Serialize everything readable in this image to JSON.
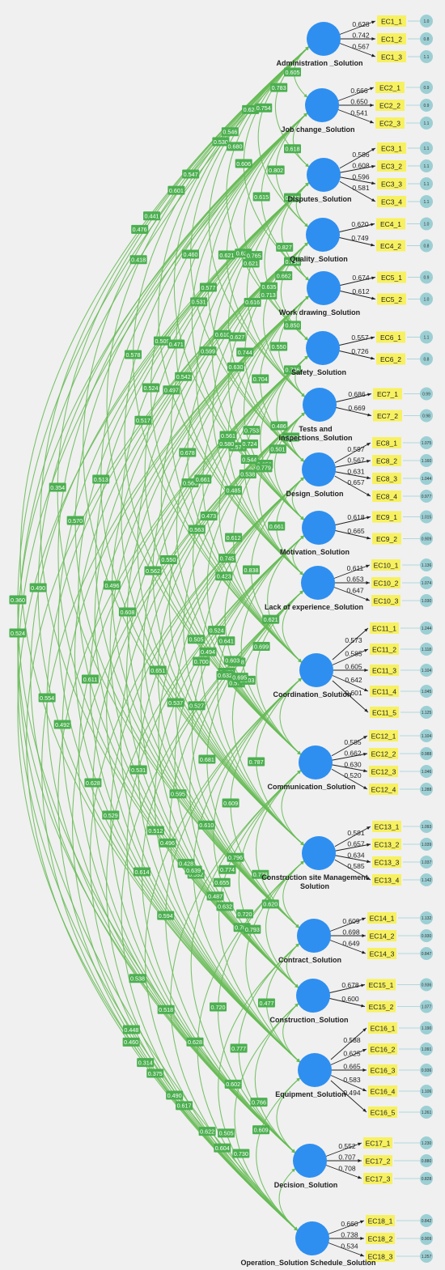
{
  "constructs": [
    {
      "name": "Administration _Solution",
      "items": [
        {
          "label": "EC1_1",
          "loading": "0.628",
          "residual": "1.0"
        },
        {
          "label": "EC1_2",
          "loading": "0.742",
          "residual": "0.8"
        },
        {
          "label": "EC1_3",
          "loading": "0.567",
          "residual": "1.1"
        }
      ]
    },
    {
      "name": "Job change_Solution",
      "items": [
        {
          "label": "EC2_1",
          "loading": "0.666",
          "residual": "0.9"
        },
        {
          "label": "EC2_2",
          "loading": "0.650",
          "residual": "0.9"
        },
        {
          "label": "EC2_3",
          "loading": "0.541",
          "residual": "1.1"
        }
      ]
    },
    {
      "name": "Disputes_Solution",
      "items": [
        {
          "label": "EC3_1",
          "loading": "0.586",
          "residual": "1.1"
        },
        {
          "label": "EC3_2",
          "loading": "0.608",
          "residual": "1.1"
        },
        {
          "label": "EC3_3",
          "loading": "0.596",
          "residual": "1.1"
        },
        {
          "label": "EC3_4",
          "loading": "0.581",
          "residual": "1.1"
        }
      ]
    },
    {
      "name": "Quality_Solution",
      "items": [
        {
          "label": "EC4_1",
          "loading": "0.620",
          "residual": "1.0"
        },
        {
          "label": "EC4_2",
          "loading": "0.749",
          "residual": "0.8"
        }
      ]
    },
    {
      "name": "Work drawing_Solution",
      "items": [
        {
          "label": "EC5_1",
          "loading": "0.674",
          "residual": "0.9"
        },
        {
          "label": "EC5_2",
          "loading": "0.612",
          "residual": "1.0"
        }
      ]
    },
    {
      "name": "Safety_Solution",
      "items": [
        {
          "label": "EC6_1",
          "loading": "0.557",
          "residual": "1.1"
        },
        {
          "label": "EC6_2",
          "loading": "0.726",
          "residual": "0.8"
        }
      ]
    },
    {
      "name": "Tests and inspections_Solution",
      "items": [
        {
          "label": "EC7_1",
          "loading": "0.686",
          "residual": "0.99"
        },
        {
          "label": "EC7_2",
          "loading": "0.669",
          "residual": "0.98"
        }
      ]
    },
    {
      "name": "Design_Solution",
      "items": [
        {
          "label": "EC8_1",
          "loading": "0.597",
          "residual": "1.075"
        },
        {
          "label": "EC8_2",
          "loading": "0.567",
          "residual": "1.160"
        },
        {
          "label": "EC8_3",
          "loading": "0.631",
          "residual": "1.044"
        },
        {
          "label": "EC8_4",
          "loading": "0.657",
          "residual": "0.977"
        }
      ]
    },
    {
      "name": "Motivation_Solution",
      "items": [
        {
          "label": "EC9_1",
          "loading": "0.618",
          "residual": "1.015"
        },
        {
          "label": "EC9_2",
          "loading": "0.665",
          "residual": "0.909"
        }
      ]
    },
    {
      "name": "Lack of experience_Solution",
      "items": [
        {
          "label": "EC10_1",
          "loading": "0.611",
          "residual": "1.136"
        },
        {
          "label": "EC10_2",
          "loading": "0.653",
          "residual": "1.074"
        },
        {
          "label": "EC10_3",
          "loading": "0.647",
          "residual": "1.030"
        }
      ]
    },
    {
      "name": "Coordination_Solution",
      "items": [
        {
          "label": "EC11_1",
          "loading": "0.573",
          "residual": "1.244"
        },
        {
          "label": "EC11_2",
          "loading": "0.585",
          "residual": "1.118"
        },
        {
          "label": "EC11_3",
          "loading": "0.605",
          "residual": "1.104"
        },
        {
          "label": "EC11_4",
          "loading": "0.642",
          "residual": "1.045"
        },
        {
          "label": "EC11_5",
          "loading": "0.601",
          "residual": "1.125"
        }
      ]
    },
    {
      "name": "Communication_Solution",
      "items": [
        {
          "label": "EC12_1",
          "loading": "0.585",
          "residual": "1.104"
        },
        {
          "label": "EC12_2",
          "loading": "0.662",
          "residual": "0.988"
        },
        {
          "label": "EC12_3",
          "loading": "0.630",
          "residual": "1.046"
        },
        {
          "label": "EC12_4",
          "loading": "0.520",
          "residual": "1.288"
        }
      ]
    },
    {
      "name": "Construction site Management Solution",
      "items": [
        {
          "label": "EC13_1",
          "loading": "0.581",
          "residual": "1.093"
        },
        {
          "label": "EC13_2",
          "loading": "0.657",
          "residual": "1.039"
        },
        {
          "label": "EC13_3",
          "loading": "0.634",
          "residual": "1.037"
        },
        {
          "label": "EC13_4",
          "loading": "0.585",
          "residual": "1.142"
        }
      ]
    },
    {
      "name": "Contract_Solution",
      "items": [
        {
          "label": "EC14_1",
          "loading": "0.609",
          "residual": "1.132"
        },
        {
          "label": "EC14_2",
          "loading": "0.698",
          "residual": "0.930"
        },
        {
          "label": "EC14_3",
          "loading": "0.649",
          "residual": "0.847"
        }
      ]
    },
    {
      "name": "Construction_Solution",
      "items": [
        {
          "label": "EC15_1",
          "loading": "0.678",
          "residual": "0.936"
        },
        {
          "label": "EC15_2",
          "loading": "0.600",
          "residual": "1.077"
        }
      ]
    },
    {
      "name": "Equipment_Solution",
      "items": [
        {
          "label": "EC16_1",
          "loading": "0.588",
          "residual": "1.190"
        },
        {
          "label": "EC16_2",
          "loading": "0.625",
          "residual": "1.091"
        },
        {
          "label": "EC16_3",
          "loading": "0.665",
          "residual": "0.936"
        },
        {
          "label": "EC16_4",
          "loading": "0.583",
          "residual": "1.106"
        },
        {
          "label": "EC16_5",
          "loading": "0.494",
          "residual": "1.261"
        }
      ]
    },
    {
      "name": "Decision_Solution",
      "items": [
        {
          "label": "EC17_1",
          "loading": "0.552",
          "residual": "1.230"
        },
        {
          "label": "EC17_2",
          "loading": "0.707",
          "residual": "0.880"
        },
        {
          "label": "EC17_3",
          "loading": "0.708",
          "residual": "0.828"
        }
      ]
    },
    {
      "name": "Operation_Solution Schedule_Solution",
      "items": [
        {
          "label": "EC18_1",
          "loading": "0.660",
          "residual": "0.842"
        },
        {
          "label": "EC18_2",
          "loading": "0.738",
          "residual": "0.909"
        },
        {
          "label": "EC18_3",
          "loading": "0.534",
          "residual": "1.257"
        }
      ]
    }
  ],
  "correlations": [
    "0.418",
    "0.360",
    "0.448",
    "0.476",
    "0.524",
    "0.460",
    "0.441",
    "0.490",
    "0.538",
    "0.517",
    "0.354",
    "0.512",
    "0.509",
    "0.554",
    "0.314",
    "0.601",
    "0.570",
    "0.496",
    "0.497",
    "0.492",
    "0.375",
    "0.547",
    "0.513",
    "0.595",
    "0.542",
    "0.611",
    "0.518",
    "0.550",
    "0.578",
    "0.505",
    "0.531",
    "0.496",
    "0.428",
    "0.566",
    "0.628",
    "0.490",
    "0.530",
    "0.524",
    "0.494",
    "0.599",
    "0.608",
    "0.592",
    "0.563",
    "0.529",
    "0.617",
    "0.546",
    "0.471",
    "0.423",
    "0.610",
    "0.562",
    "0.610",
    "0.473",
    "0.531",
    "0.628",
    "0.527",
    "0.460",
    "0.574",
    "0.622",
    "0.678",
    "0.478",
    "0.580",
    "0.651",
    "0.487",
    "0.524",
    "0.614",
    "0.622",
    "0.624",
    "0.577",
    "0.544",
    "0.616",
    "0.661",
    "0.574",
    "0.485",
    "0.537",
    "0.632",
    "0.632",
    "0.594",
    "0.604",
    "0.680",
    "0.621",
    "0.630",
    "0.627",
    "0.561",
    "0.745",
    "0.538",
    "0.700",
    "0.796",
    "0.738",
    "0.639",
    "0.602",
    "0.702",
    "0.606",
    "0.621",
    "0.765",
    "0.744",
    "0.724",
    "0.753",
    "0.612",
    "0.603",
    "0.641",
    "0.681",
    "0.655",
    "0.774",
    "0.720",
    "0.505",
    "0.754",
    "0.615",
    "0.635",
    "0.713",
    "0.704",
    "0.656",
    "0.779",
    "0.838",
    "0.503",
    "0.695",
    "0.609",
    "0.720",
    "0.793",
    "0.777",
    "0.730",
    "0.783",
    "0.802",
    "0.827",
    "0.662",
    "0.550",
    "0.486",
    "0.501",
    "0.661",
    "0.621",
    "0.699",
    "0.787",
    "0.778",
    "0.620",
    "0.477",
    "0.766",
    "0.609",
    "0.605",
    "0.618",
    "0.720",
    "0.758",
    "0.850",
    "0.736",
    "0.683"
  ]
}
